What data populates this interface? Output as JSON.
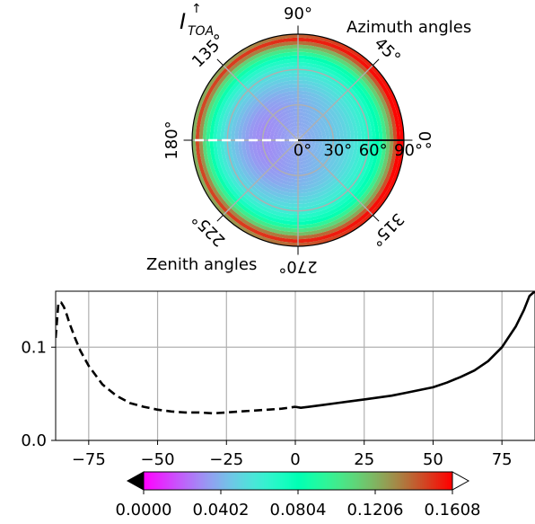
{
  "figure": {
    "polar_title_main": "I",
    "polar_title_sup": "↑",
    "polar_title_sub": "TOA",
    "azimuth_label": "Azimuth angles",
    "zenith_label": "Zenith angles"
  },
  "chart_data": [
    {
      "type": "heatmap",
      "projection": "polar",
      "colormap": "rainbow",
      "title": "I↑TOA",
      "theta_label": "Azimuth angles",
      "r_label": "Zenith angles",
      "theta_ticks": [
        "0°",
        "45°",
        "90°",
        "135°",
        "180°",
        "225°",
        "270°",
        "315°"
      ],
      "theta_tick_values": [
        0,
        45,
        90,
        135,
        180,
        225,
        270,
        315
      ],
      "r_ticks": [
        "0°",
        "30°",
        "60°",
        "90°"
      ],
      "r_tick_values": [
        0,
        30,
        60,
        90
      ],
      "rlim": [
        0,
        90
      ],
      "grid": true,
      "markers": [
        {
          "style": "dashed",
          "color": "#ffffff",
          "theta": 180,
          "r": [
            0,
            90
          ]
        },
        {
          "style": "solid",
          "color": "#000000",
          "theta": 0,
          "r": [
            0,
            90
          ]
        }
      ],
      "field_profile": {
        "r": [
          0,
          10,
          20,
          30,
          40,
          50,
          60,
          70,
          80,
          85,
          90
        ],
        "value_theta_180": [
          0.036,
          0.034,
          0.031,
          0.029,
          0.032,
          0.04,
          0.05,
          0.068,
          0.11,
          0.15,
          0.11
        ],
        "value_theta_0": [
          0.036,
          0.038,
          0.042,
          0.046,
          0.05,
          0.058,
          0.068,
          0.085,
          0.13,
          0.16,
          0.16
        ]
      }
    },
    {
      "type": "line",
      "x": [
        -87,
        -86,
        -85,
        -84,
        -83,
        -82,
        -80,
        -78,
        -75,
        -70,
        -65,
        -60,
        -55,
        -50,
        -45,
        -40,
        -35,
        -30,
        -25,
        -20,
        -15,
        -10,
        -5,
        0,
        2,
        5,
        10,
        15,
        20,
        25,
        30,
        35,
        40,
        45,
        50,
        55,
        60,
        65,
        70,
        75,
        80,
        83,
        85,
        87
      ],
      "series": [
        {
          "style": "dashed",
          "color": "#000000",
          "x_range": [
            -87,
            0
          ],
          "x": [
            -87,
            -86,
            -85,
            -84,
            -83,
            -82,
            -80,
            -78,
            -75,
            -70,
            -65,
            -60,
            -55,
            -50,
            -45,
            -40,
            -35,
            -30,
            -25,
            -20,
            -15,
            -10,
            -5,
            0
          ],
          "values": [
            0.11,
            0.148,
            0.148,
            0.143,
            0.135,
            0.126,
            0.11,
            0.096,
            0.08,
            0.06,
            0.048,
            0.04,
            0.036,
            0.033,
            0.031,
            0.03,
            0.03,
            0.029,
            0.03,
            0.031,
            0.032,
            0.033,
            0.034,
            0.036
          ]
        },
        {
          "style": "solid",
          "color": "#000000",
          "x_range": [
            0,
            87
          ],
          "x": [
            0,
            2,
            5,
            10,
            15,
            20,
            25,
            30,
            35,
            40,
            45,
            50,
            55,
            60,
            65,
            70,
            75,
            80,
            83,
            85,
            87
          ],
          "values": [
            0.036,
            0.035,
            0.036,
            0.038,
            0.04,
            0.042,
            0.044,
            0.046,
            0.048,
            0.051,
            0.054,
            0.057,
            0.062,
            0.068,
            0.075,
            0.085,
            0.1,
            0.122,
            0.14,
            0.155,
            0.16
          ]
        }
      ],
      "xlim": [
        -87,
        87
      ],
      "ylim": [
        0,
        0.16
      ],
      "x_ticks": [
        -75,
        -50,
        -25,
        0,
        25,
        50,
        75
      ],
      "y_ticks": [
        0.0,
        0.1
      ],
      "y_tick_labels": [
        "0.0",
        "0.1"
      ],
      "grid": true
    },
    {
      "type": "colorbar",
      "colormap": "rainbow",
      "orientation": "horizontal",
      "range": [
        0.0,
        0.1608
      ],
      "extend": "both",
      "tick_values": [
        0.0,
        0.0402,
        0.0804,
        0.1206,
        0.1608
      ],
      "tick_labels": [
        "0.0000",
        "0.0402",
        "0.0804",
        "0.1206",
        "0.1608"
      ]
    }
  ]
}
